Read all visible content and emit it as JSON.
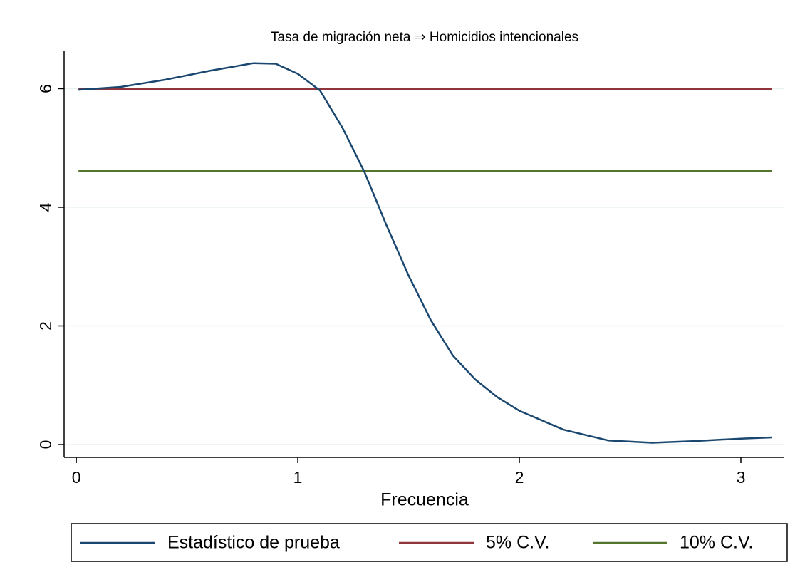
{
  "chart_data": {
    "type": "line",
    "title": "Tasa de migración neta ⇒ Homicidios intencionales",
    "xlabel": "Frecuencia",
    "xlim": [
      -0.055,
      3.193
    ],
    "xticks": [
      0,
      1,
      2,
      3
    ],
    "ylim": [
      -0.216,
      6.63
    ],
    "yticks": [
      0,
      2,
      4,
      6
    ],
    "grid": true,
    "legend": "bottom",
    "series": [
      {
        "name": "Estadístico de prueba",
        "color": "#1a476f",
        "x": [
          0.01,
          0.2,
          0.4,
          0.6,
          0.8,
          0.9,
          1.0,
          1.1,
          1.2,
          1.3,
          1.4,
          1.5,
          1.6,
          1.7,
          1.8,
          1.9,
          2.0,
          2.2,
          2.4,
          2.6,
          2.8,
          3.0,
          3.14
        ],
        "values": [
          5.98,
          6.03,
          6.15,
          6.3,
          6.43,
          6.42,
          6.25,
          5.97,
          5.35,
          4.6,
          3.7,
          2.85,
          2.1,
          1.5,
          1.1,
          0.8,
          0.57,
          0.25,
          0.07,
          0.03,
          0.06,
          0.1,
          0.12
        ]
      },
      {
        "name": "5% C.V.",
        "color": "#90353b",
        "x": [
          0.01,
          3.14
        ],
        "values": [
          5.99,
          5.99
        ]
      },
      {
        "name": "10% C.V.",
        "color": "#55752f",
        "x": [
          0.01,
          3.14
        ],
        "values": [
          4.61,
          4.61
        ]
      }
    ]
  }
}
